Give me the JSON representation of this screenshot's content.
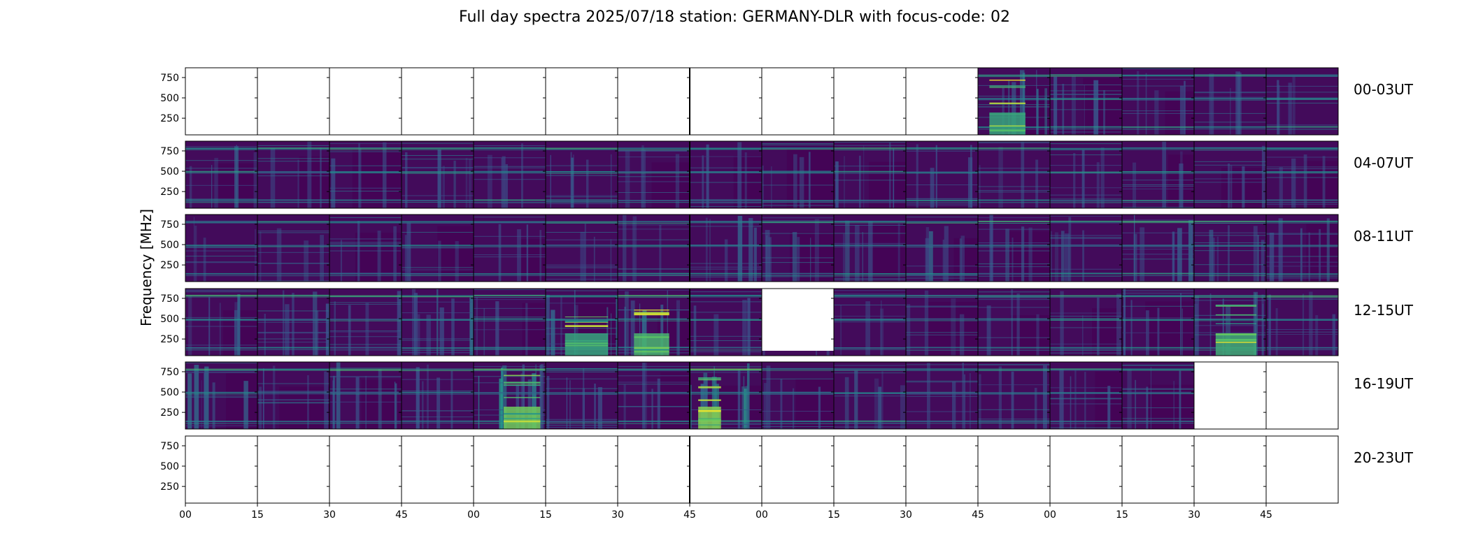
{
  "chart_data": {
    "type": "heatmap",
    "title": "Full day spectra 2025/07/18 station: GERMANY-DLR with focus-code: 02",
    "ylabel": "Frequency [MHz]",
    "xlabel": "",
    "ylim": [
      45,
      870
    ],
    "y_ticks": [
      "750",
      "500",
      "250"
    ],
    "y_tick_values": [
      750,
      500,
      250
    ],
    "x_ticks": [
      "00",
      "15",
      "30",
      "45",
      "00",
      "15",
      "30",
      "45",
      "00",
      "15",
      "30",
      "45",
      "00",
      "15",
      "30",
      "45"
    ],
    "colormap": [
      "#440154",
      "#3b528b",
      "#21918c",
      "#5ec962",
      "#fde725"
    ],
    "rows": [
      {
        "label": "00-03UT",
        "panels": [
          0,
          0,
          0,
          0,
          0,
          0,
          0,
          0,
          0,
          0,
          0,
          1,
          1,
          1,
          1,
          1
        ],
        "intensity": [
          0,
          0,
          0,
          0,
          0,
          0,
          0,
          0,
          0,
          0,
          0,
          0.45,
          0.25,
          0.2,
          0.2,
          0.15
        ]
      },
      {
        "label": "04-07UT",
        "panels": [
          1,
          1,
          1,
          1,
          1,
          1,
          1,
          1,
          1,
          1,
          1,
          1,
          1,
          1,
          1,
          1
        ],
        "intensity": [
          0.3,
          0.15,
          0.15,
          0.3,
          0.2,
          0.25,
          0.15,
          0.15,
          0.2,
          0.25,
          0.2,
          0.15,
          0.15,
          0.15,
          0.15,
          0.15
        ]
      },
      {
        "label": "08-11UT",
        "panels": [
          1,
          1,
          1,
          1,
          1,
          1,
          1,
          1,
          1,
          1,
          1,
          1,
          1,
          1,
          1,
          1
        ],
        "intensity": [
          0.15,
          0.15,
          0.15,
          0.15,
          0.15,
          0.15,
          0.15,
          0.3,
          0.35,
          0.3,
          0.35,
          0.25,
          0.25,
          0.3,
          0.35,
          0.3
        ]
      },
      {
        "label": "12-15UT",
        "panels": [
          1,
          1,
          1,
          1,
          1,
          1,
          1,
          1,
          2,
          1,
          1,
          1,
          1,
          1,
          1,
          1
        ],
        "intensity": [
          0.3,
          0.35,
          0.2,
          0.4,
          0.15,
          0.45,
          0.55,
          0.15,
          0.1,
          0.15,
          0.15,
          0.15,
          0.15,
          0.3,
          0.5,
          0.25
        ]
      },
      {
        "label": "16-19UT",
        "panels": [
          1,
          1,
          1,
          1,
          1,
          1,
          1,
          1,
          1,
          1,
          1,
          1,
          1,
          1,
          0,
          0
        ],
        "intensity": [
          0.35,
          0.2,
          0.4,
          0.2,
          0.7,
          0.35,
          0.2,
          0.75,
          0.2,
          0.25,
          0.25,
          0.2,
          0.2,
          0.25,
          0,
          0
        ]
      },
      {
        "label": "20-23UT",
        "panels": [
          0,
          0,
          0,
          0,
          0,
          0,
          0,
          0,
          0,
          0,
          0,
          0,
          0,
          0,
          0,
          0
        ],
        "intensity": [
          0,
          0,
          0,
          0,
          0,
          0,
          0,
          0,
          0,
          0,
          0,
          0,
          0,
          0,
          0,
          0
        ]
      }
    ]
  }
}
